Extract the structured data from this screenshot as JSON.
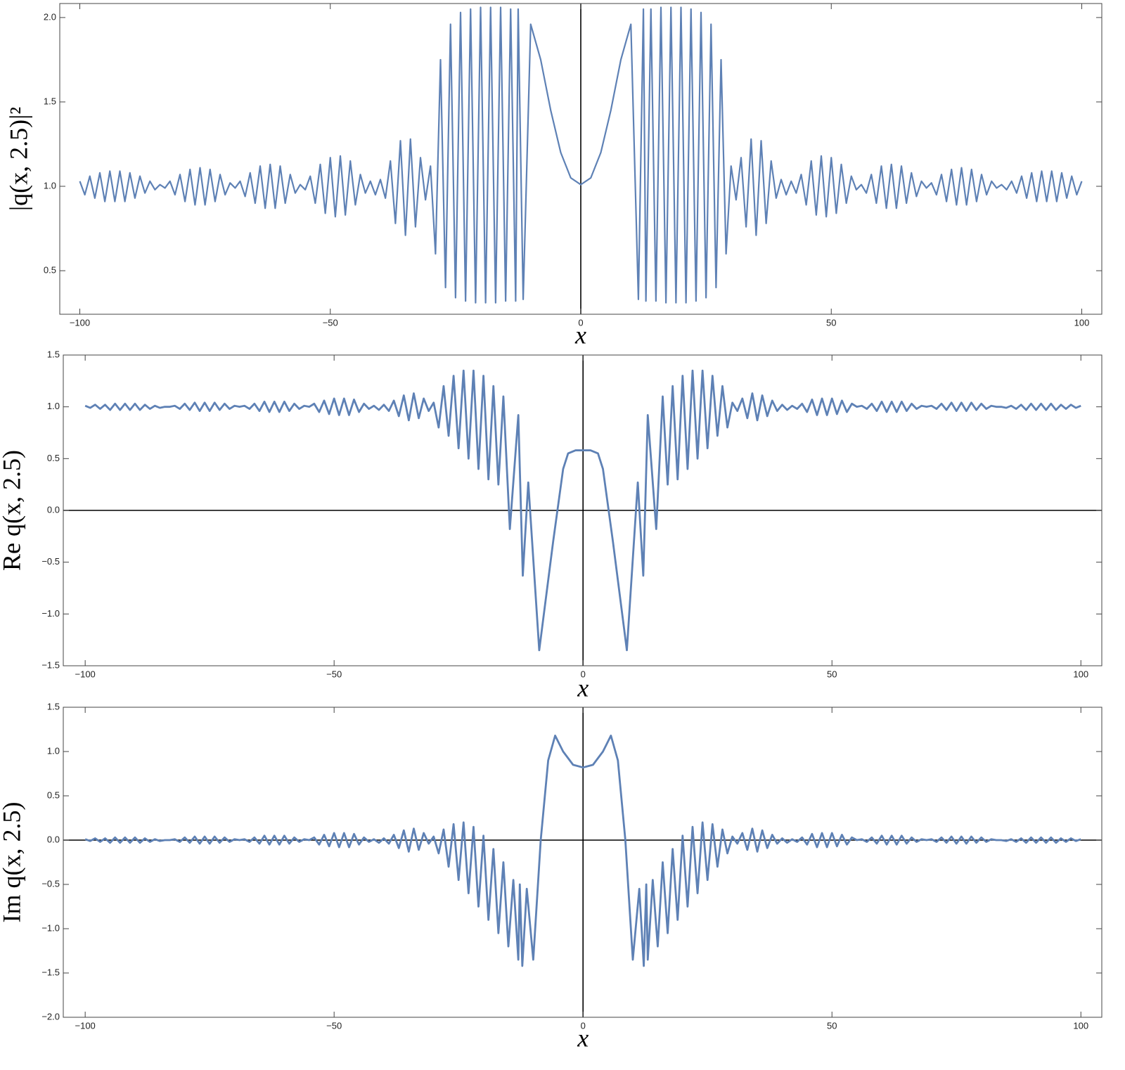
{
  "chart_data": [
    {
      "type": "line",
      "x_label": "x",
      "y_label": "|q(x, 2.5)|²",
      "color": "#5e81b5",
      "xlim": [
        -104,
        104
      ],
      "ylim": [
        0.242,
        2.083
      ],
      "xticks": [
        {
          "value": -100,
          "label": "−100"
        },
        {
          "value": -50,
          "label": "−50"
        },
        0,
        50,
        100
      ],
      "yticks": [
        0.5,
        {
          "value": 1,
          "label": "1.0"
        },
        1.5,
        {
          "value": 2,
          "label": "2.0"
        }
      ],
      "x": [
        -100,
        -99,
        -98,
        -97,
        -96,
        -95,
        -94,
        -93,
        -92,
        -91,
        -90,
        -89,
        -88,
        -87,
        -86,
        -85,
        -84,
        -83,
        -82,
        -81,
        -80,
        -79,
        -78,
        -77,
        -76,
        -75,
        -74,
        -73,
        -72,
        -71,
        -70,
        -69,
        -68,
        -67,
        -66,
        -65,
        -64,
        -63,
        -62,
        -61,
        -60,
        -59,
        -58,
        -57,
        -56,
        -55,
        -54,
        -53,
        -52,
        -51,
        -50,
        -49,
        -48,
        -47,
        -46,
        -45,
        -44,
        -43,
        -42,
        -41,
        -40,
        -39,
        -38,
        -37,
        -36,
        -35,
        -34,
        -33,
        -32,
        -31,
        -30,
        -29,
        -28,
        -27,
        -26,
        -25,
        -24,
        -23,
        -22,
        -21,
        -20,
        -19,
        -18,
        -17,
        -16,
        -15,
        -14,
        -13,
        -12.5,
        -11.5,
        -10,
        -8,
        -6,
        -4,
        -2,
        0,
        2,
        4,
        6,
        8,
        10,
        11.5,
        12.5,
        13,
        14,
        15,
        16,
        17,
        18,
        19,
        20,
        21,
        22,
        23,
        24,
        25,
        26,
        27,
        28,
        29,
        30,
        31,
        32,
        33,
        34,
        35,
        36,
        37,
        38,
        39,
        40,
        41,
        42,
        43,
        44,
        45,
        46,
        47,
        48,
        49,
        50,
        51,
        52,
        53,
        54,
        55,
        56,
        57,
        58,
        59,
        60,
        61,
        62,
        63,
        64,
        65,
        66,
        67,
        68,
        69,
        70,
        71,
        72,
        73,
        74,
        75,
        76,
        77,
        78,
        79,
        80,
        81,
        82,
        83,
        84,
        85,
        86,
        87,
        88,
        89,
        90,
        91,
        92,
        93,
        94,
        95,
        96,
        97,
        98,
        99,
        100
      ],
      "values": [
        1.03,
        0.95,
        1.06,
        0.93,
        1.08,
        0.91,
        1.09,
        0.91,
        1.09,
        0.91,
        1.08,
        0.93,
        1.06,
        0.96,
        1.03,
        0.98,
        1.01,
        0.99,
        1.03,
        0.95,
        1.07,
        0.91,
        1.1,
        0.89,
        1.11,
        0.89,
        1.1,
        0.91,
        1.07,
        0.95,
        1.02,
        0.99,
        1.03,
        0.94,
        1.08,
        0.9,
        1.12,
        0.87,
        1.13,
        0.87,
        1.12,
        0.9,
        1.07,
        0.96,
        1.01,
        0.98,
        1.06,
        0.9,
        1.13,
        0.84,
        1.17,
        0.82,
        1.18,
        0.83,
        1.15,
        0.89,
        1.07,
        0.96,
        1.03,
        0.95,
        1.04,
        0.93,
        1.15,
        0.78,
        1.27,
        0.71,
        1.28,
        0.76,
        1.17,
        0.92,
        1.12,
        0.6,
        1.75,
        0.4,
        1.96,
        0.34,
        2.03,
        0.32,
        2.05,
        0.31,
        2.06,
        0.31,
        2.06,
        0.31,
        2.06,
        0.32,
        2.05,
        0.32,
        2.05,
        0.33,
        1.96,
        1.75,
        1.45,
        1.2,
        1.05,
        1.01,
        1.05,
        1.2,
        1.45,
        1.75,
        1.96,
        0.33,
        2.05,
        0.32,
        2.05,
        0.32,
        2.06,
        0.31,
        2.06,
        0.31,
        2.06,
        0.31,
        2.05,
        0.32,
        2.03,
        0.34,
        1.96,
        0.4,
        1.75,
        0.6,
        1.12,
        0.92,
        1.17,
        0.76,
        1.28,
        0.71,
        1.27,
        0.78,
        1.15,
        0.93,
        1.04,
        0.95,
        1.03,
        0.96,
        1.07,
        0.89,
        1.15,
        0.83,
        1.18,
        0.82,
        1.17,
        0.84,
        1.13,
        0.9,
        1.06,
        0.98,
        1.01,
        0.96,
        1.07,
        0.9,
        1.12,
        0.87,
        1.13,
        0.87,
        1.12,
        0.9,
        1.08,
        0.94,
        1.03,
        0.99,
        1.02,
        0.95,
        1.07,
        0.91,
        1.1,
        0.89,
        1.11,
        0.89,
        1.1,
        0.91,
        1.07,
        0.95,
        1.03,
        0.99,
        1.01,
        0.98,
        1.03,
        0.96,
        1.06,
        0.93,
        1.08,
        0.91,
        1.09,
        0.91,
        1.09,
        0.91,
        1.08,
        0.93,
        1.06,
        0.95,
        1.03
      ]
    },
    {
      "type": "line",
      "x_label": "x",
      "y_label": "Re q(x, 2.5)",
      "color": "#5e81b5",
      "xlim": [
        -104.4,
        104.2
      ],
      "ylim": [
        -1.5,
        1.5
      ],
      "xticks": [
        {
          "value": -100,
          "label": "−100"
        },
        {
          "value": -50,
          "label": "−50"
        },
        0,
        50,
        100
      ],
      "yticks": [
        {
          "value": -1.5,
          "label": "−1.5"
        },
        {
          "value": -1,
          "label": "−1.0"
        },
        {
          "value": -0.5,
          "label": "−0.5"
        },
        {
          "value": 0,
          "label": "0.0"
        },
        0.5,
        {
          "value": 1,
          "label": "1.0"
        },
        1.5
      ],
      "x": [
        -100,
        -99,
        -98,
        -97,
        -96,
        -95,
        -94,
        -93,
        -92,
        -91,
        -90,
        -89,
        -88,
        -87,
        -86,
        -85,
        -84,
        -83,
        -82,
        -81,
        -80,
        -79,
        -78,
        -77,
        -76,
        -75,
        -74,
        -73,
        -72,
        -71,
        -70,
        -69,
        -68,
        -67,
        -66,
        -65,
        -64,
        -63,
        -62,
        -61,
        -60,
        -59,
        -58,
        -57,
        -56,
        -55,
        -54,
        -53,
        -52,
        -51,
        -50,
        -49,
        -48,
        -47,
        -46,
        -45,
        -44,
        -43,
        -42,
        -41,
        -40,
        -39,
        -38,
        -37,
        -36,
        -35,
        -34,
        -33,
        -32,
        -31,
        -30,
        -29,
        -28,
        -27,
        -26,
        -25,
        -24,
        -23,
        -22,
        -21,
        -20,
        -19,
        -18,
        -17,
        -16,
        -14.7,
        -13,
        -12.1,
        -11,
        -8.8,
        -6,
        -4,
        -3,
        -1.5,
        0,
        1.5,
        3,
        4,
        6,
        8.8,
        11,
        12.1,
        13,
        14.7,
        16,
        17,
        18,
        19,
        20,
        21,
        22,
        23,
        24,
        25,
        26,
        27,
        28,
        29,
        30,
        31,
        32,
        33,
        34,
        35,
        36,
        37,
        38,
        39,
        40,
        41,
        42,
        43,
        44,
        45,
        46,
        47,
        48,
        49,
        50,
        51,
        52,
        53,
        54,
        55,
        56,
        57,
        58,
        59,
        60,
        61,
        62,
        63,
        64,
        65,
        66,
        67,
        68,
        69,
        70,
        71,
        72,
        73,
        74,
        75,
        76,
        77,
        78,
        79,
        80,
        81,
        82,
        83,
        84,
        85,
        86,
        87,
        88,
        89,
        90,
        91,
        92,
        93,
        94,
        95,
        96,
        97,
        98,
        99,
        100
      ],
      "values": [
        1.01,
        0.99,
        1.02,
        0.98,
        1.02,
        0.97,
        1.03,
        0.97,
        1.03,
        0.97,
        1.03,
        0.97,
        1.02,
        0.98,
        1.01,
        0.99,
        1.0,
        1.0,
        1.01,
        0.98,
        1.03,
        0.97,
        1.04,
        0.96,
        1.04,
        0.96,
        1.04,
        0.97,
        1.03,
        0.98,
        1.01,
        1.0,
        1.01,
        0.98,
        1.03,
        0.96,
        1.05,
        0.95,
        1.05,
        0.95,
        1.05,
        0.96,
        1.03,
        0.98,
        1.01,
        1.0,
        1.03,
        0.95,
        1.06,
        0.93,
        1.08,
        0.92,
        1.08,
        0.92,
        1.07,
        0.95,
        1.03,
        0.98,
        1.01,
        0.97,
        1.02,
        0.96,
        1.06,
        0.91,
        1.11,
        0.87,
        1.13,
        0.89,
        1.08,
        0.96,
        1.04,
        0.8,
        1.2,
        0.72,
        1.3,
        0.6,
        1.35,
        0.5,
        1.35,
        0.4,
        1.3,
        0.3,
        1.2,
        0.25,
        1.1,
        -0.18,
        0.92,
        -0.63,
        0.27,
        -1.35,
        -0.3,
        0.4,
        0.55,
        0.58,
        0.58,
        0.58,
        0.55,
        0.4,
        -0.3,
        -1.35,
        0.27,
        -0.63,
        0.92,
        -0.18,
        1.1,
        0.25,
        1.2,
        0.3,
        1.3,
        0.4,
        1.35,
        0.5,
        1.35,
        0.6,
        1.3,
        0.72,
        1.2,
        0.8,
        1.04,
        0.96,
        1.08,
        0.89,
        1.13,
        0.87,
        1.11,
        0.91,
        1.06,
        0.96,
        1.02,
        0.97,
        1.01,
        0.98,
        1.03,
        0.95,
        1.07,
        0.92,
        1.08,
        0.92,
        1.08,
        0.93,
        1.06,
        0.95,
        1.03,
        1.0,
        1.01,
        0.98,
        1.03,
        0.96,
        1.05,
        0.95,
        1.05,
        0.95,
        1.05,
        0.96,
        1.03,
        0.98,
        1.01,
        1.0,
        1.01,
        0.98,
        1.03,
        0.97,
        1.04,
        0.96,
        1.04,
        0.96,
        1.04,
        0.97,
        1.03,
        0.98,
        1.01,
        1.0,
        1.0,
        0.99,
        1.01,
        0.98,
        1.02,
        0.97,
        1.03,
        0.97,
        1.03,
        0.97,
        1.03,
        0.97,
        1.02,
        0.98,
        1.02,
        0.99,
        1.01
      ]
    },
    {
      "type": "line",
      "x_label": "x",
      "y_label": "Im q(x, 2.5)",
      "color": "#5e81b5",
      "xlim": [
        -104.4,
        104.2
      ],
      "ylim": [
        -2,
        1.5
      ],
      "xticks": [
        {
          "value": -100,
          "label": "−100"
        },
        {
          "value": -50,
          "label": "−50"
        },
        0,
        50,
        100
      ],
      "yticks": [
        {
          "value": -2,
          "label": "−2.0"
        },
        {
          "value": -1.5,
          "label": "−1.5"
        },
        {
          "value": -1,
          "label": "−1.0"
        },
        {
          "value": -0.5,
          "label": "−0.5"
        },
        {
          "value": 0,
          "label": "0.0"
        },
        0.5,
        {
          "value": 1,
          "label": "1.0"
        },
        1.5
      ],
      "x": [
        -100,
        -99,
        -98,
        -97,
        -96,
        -95,
        -94,
        -93,
        -92,
        -91,
        -90,
        -89,
        -88,
        -87,
        -86,
        -85,
        -84,
        -83,
        -82,
        -81,
        -80,
        -79,
        -78,
        -77,
        -76,
        -75,
        -74,
        -73,
        -72,
        -71,
        -70,
        -69,
        -68,
        -67,
        -66,
        -65,
        -64,
        -63,
        -62,
        -61,
        -60,
        -59,
        -58,
        -57,
        -56,
        -55,
        -54,
        -53,
        -52,
        -51,
        -50,
        -49,
        -48,
        -47,
        -46,
        -45,
        -44,
        -43,
        -42,
        -41,
        -40,
        -39,
        -38,
        -37,
        -36,
        -35,
        -34,
        -33,
        -32,
        -31,
        -30,
        -29,
        -28,
        -27,
        -26,
        -25,
        -24,
        -23,
        -22,
        -21,
        -20,
        -19,
        -18,
        -17,
        -16,
        -15,
        -14,
        -13,
        -12.7,
        -12.2,
        -11.3,
        -10,
        -8.5,
        -7,
        -5.6,
        -4,
        -2,
        0,
        2,
        4,
        5.6,
        7,
        8.5,
        10,
        11.3,
        12.2,
        12.7,
        13,
        14,
        15,
        16,
        17,
        18,
        19,
        20,
        21,
        22,
        23,
        24,
        25,
        26,
        27,
        28,
        29,
        30,
        31,
        32,
        33,
        34,
        35,
        36,
        37,
        38,
        39,
        40,
        41,
        42,
        43,
        44,
        45,
        46,
        47,
        48,
        49,
        50,
        51,
        52,
        53,
        54,
        55,
        56,
        57,
        58,
        59,
        60,
        61,
        62,
        63,
        64,
        65,
        66,
        67,
        68,
        69,
        70,
        71,
        72,
        73,
        74,
        75,
        76,
        77,
        78,
        79,
        80,
        81,
        82,
        83,
        84,
        85,
        86,
        87,
        88,
        89,
        90,
        91,
        92,
        93,
        94,
        95,
        96,
        97,
        98,
        99,
        100
      ],
      "values": [
        0.01,
        -0.01,
        0.02,
        -0.02,
        0.02,
        -0.03,
        0.03,
        -0.03,
        0.03,
        -0.03,
        0.03,
        -0.03,
        0.02,
        -0.02,
        0.01,
        -0.01,
        0,
        0,
        0.01,
        -0.02,
        0.03,
        -0.03,
        0.04,
        -0.04,
        0.04,
        -0.04,
        0.04,
        -0.03,
        0.03,
        -0.02,
        0.01,
        0,
        0.01,
        -0.02,
        0.03,
        -0.04,
        0.05,
        -0.05,
        0.05,
        -0.05,
        0.05,
        -0.04,
        0.03,
        -0.02,
        0.01,
        0,
        0.03,
        -0.05,
        0.06,
        -0.07,
        0.08,
        -0.08,
        0.08,
        -0.08,
        0.07,
        -0.05,
        0.03,
        -0.02,
        0.01,
        -0.03,
        0.02,
        -0.04,
        0.06,
        -0.09,
        0.11,
        -0.13,
        0.13,
        -0.11,
        0.08,
        -0.04,
        0.04,
        -0.15,
        0.12,
        -0.3,
        0.18,
        -0.45,
        0.2,
        -0.6,
        0.15,
        -0.75,
        0.05,
        -0.9,
        -0.1,
        -1.05,
        -0.25,
        -1.2,
        -0.45,
        -1.35,
        -0.5,
        -1.42,
        -0.55,
        -1.35,
        0,
        0.9,
        1.18,
        1.0,
        0.85,
        0.82,
        0.85,
        1.0,
        1.18,
        0.9,
        0,
        -1.35,
        -0.55,
        -1.42,
        -0.5,
        -1.35,
        -0.45,
        -1.2,
        -0.25,
        -1.05,
        -0.1,
        -0.9,
        0.05,
        -0.75,
        0.15,
        -0.6,
        0.2,
        -0.45,
        0.18,
        -0.3,
        0.12,
        -0.15,
        0.04,
        -0.04,
        0.08,
        -0.11,
        0.13,
        -0.13,
        0.11,
        -0.09,
        0.06,
        -0.04,
        0.02,
        -0.03,
        0.01,
        -0.02,
        0.03,
        -0.05,
        0.07,
        -0.08,
        0.08,
        -0.08,
        0.08,
        -0.07,
        0.06,
        -0.05,
        0.03,
        0,
        0.01,
        -0.02,
        0.03,
        -0.04,
        0.05,
        -0.05,
        0.05,
        -0.05,
        0.05,
        -0.04,
        0.03,
        -0.02,
        0.01,
        0,
        0.01,
        -0.02,
        0.03,
        -0.03,
        0.04,
        -0.04,
        0.04,
        -0.04,
        0.04,
        -0.03,
        0.03,
        -0.02,
        0.01,
        0,
        0,
        -0.01,
        0.01,
        -0.02,
        0.02,
        -0.03,
        0.03,
        -0.03,
        0.03,
        -0.03,
        0.03,
        -0.03,
        0.02,
        -0.02,
        0.02,
        -0.01,
        0.01
      ]
    }
  ]
}
